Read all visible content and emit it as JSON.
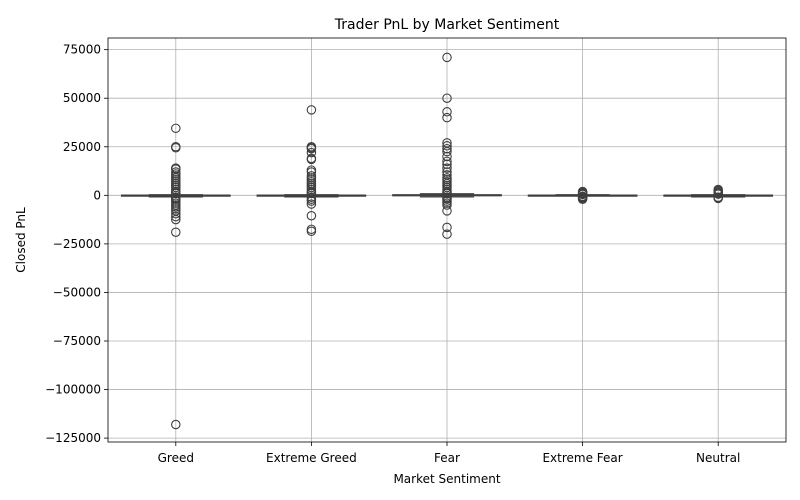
{
  "chart_data": {
    "type": "box",
    "title": "Trader PnL by Market Sentiment",
    "xlabel": "Market Sentiment",
    "ylabel": "Closed PnL",
    "ylim": [
      -127000,
      81000
    ],
    "yticks": [
      75000,
      50000,
      25000,
      0,
      -25000,
      -50000,
      -75000,
      -100000,
      -125000
    ],
    "ytick_labels": [
      "75000",
      "50000",
      "25000",
      "0",
      "−25000",
      "−50000",
      "−75000",
      "−100000",
      "−125000"
    ],
    "grid": true,
    "categories": [
      "Greed",
      "Extreme Greed",
      "Fear",
      "Extreme Fear",
      "Neutral"
    ],
    "boxes": [
      {
        "category": "Greed",
        "q1": -300,
        "median": 0,
        "q3": 100,
        "whisker_low": -800,
        "whisker_high": 300,
        "outliers": [
          34500,
          25000,
          24500,
          14000,
          13500,
          12000,
          11000,
          10000,
          9000,
          8000,
          7000,
          6000,
          5000,
          4000,
          3000,
          2000,
          1500,
          1000,
          -1000,
          -1500,
          -2000,
          -3000,
          -4000,
          -5000,
          -6000,
          -7000,
          -8000,
          -9500,
          -11000,
          -12500,
          -19000,
          -118000
        ]
      },
      {
        "category": "Extreme Greed",
        "q1": -300,
        "median": 0,
        "q3": 100,
        "whisker_low": -800,
        "whisker_high": 300,
        "outliers": [
          44000,
          25000,
          24500,
          24000,
          22000,
          19000,
          18500,
          13000,
          12000,
          10000,
          9000,
          8000,
          7000,
          6000,
          5000,
          4000,
          3000,
          2000,
          1500,
          1000,
          -1000,
          -2000,
          -3000,
          -4500,
          -10500,
          -17500,
          -18500
        ]
      },
      {
        "category": "Fear",
        "q1": -100,
        "median": 0,
        "q3": 300,
        "whisker_low": -800,
        "whisker_high": 800,
        "outliers": [
          71000,
          50000,
          43000,
          40000,
          27000,
          25500,
          24000,
          22500,
          20000,
          17500,
          16000,
          14000,
          12000,
          10500,
          9000,
          8000,
          7000,
          6000,
          5000,
          4000,
          3000,
          2000,
          1500,
          1000,
          -1000,
          -1500,
          -2000,
          -3000,
          -4000,
          -5000,
          -8000,
          -16500,
          -20000
        ]
      },
      {
        "category": "Extreme Fear",
        "q1": -100,
        "median": 0,
        "q3": 100,
        "whisker_low": -300,
        "whisker_high": 300,
        "outliers": [
          2000,
          1500,
          1200,
          800,
          500,
          -500,
          -800,
          -1200,
          -1500,
          -2000
        ]
      },
      {
        "category": "Neutral",
        "q1": -400,
        "median": 0,
        "q3": 100,
        "whisker_low": -800,
        "whisker_high": 300,
        "outliers": [
          3000,
          2500,
          2000,
          1500,
          1000,
          600,
          -1000,
          -1300,
          -1600
        ]
      }
    ]
  }
}
